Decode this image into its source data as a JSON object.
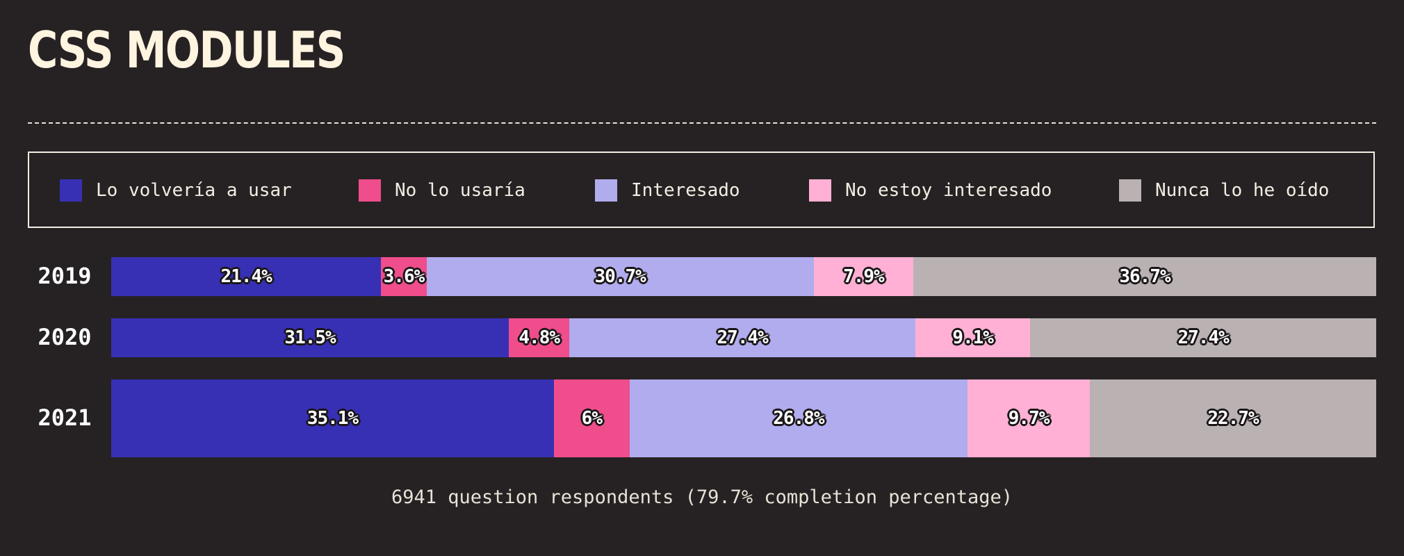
{
  "title": "CSS MODULES",
  "chart_data": {
    "type": "bar",
    "orientation": "horizontal",
    "stacked": true,
    "categories": [
      "2019",
      "2020",
      "2021"
    ],
    "series": [
      {
        "name": "Lo volvería a usar",
        "color": "#3730b4",
        "values": [
          21.4,
          31.5,
          35.1
        ],
        "labels": [
          "21.4%",
          "31.5%",
          "35.1%"
        ]
      },
      {
        "name": "No lo usaría",
        "color": "#ef4d8b",
        "values": [
          3.6,
          4.8,
          6
        ],
        "labels": [
          "3.6%",
          "4.8%",
          "6%"
        ]
      },
      {
        "name": "Interesado",
        "color": "#b0acee",
        "values": [
          30.7,
          27.4,
          26.8
        ],
        "labels": [
          "30.7%",
          "27.4%",
          "26.8%"
        ]
      },
      {
        "name": "No estoy interesado",
        "color": "#ffb0d4",
        "values": [
          7.9,
          9.1,
          9.7
        ],
        "labels": [
          "7.9%",
          "9.1%",
          "9.7%"
        ]
      },
      {
        "name": "Nunca lo he oído",
        "color": "#bab1b2",
        "values": [
          36.7,
          27.4,
          22.7
        ],
        "labels": [
          "36.7%",
          "27.4%",
          "22.7%"
        ]
      }
    ],
    "xlim": [
      0,
      100
    ],
    "legend": "top"
  },
  "footer": "6941 question respondents (79.7% completion percentage)"
}
